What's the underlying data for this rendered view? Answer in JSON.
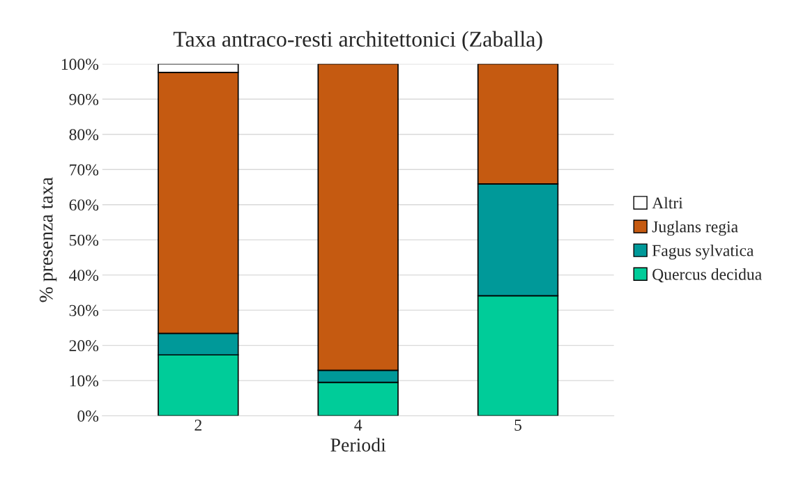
{
  "chart_data": {
    "type": "bar",
    "stacked": true,
    "title": "Taxa antraco-resti architettonici (Zaballa)",
    "xlabel": "Periodi",
    "ylabel": "% presenza taxa",
    "categories": [
      "2",
      "4",
      "5"
    ],
    "series": [
      {
        "name": "Quercus decidua",
        "color": "#00cc99",
        "values": [
          17.3,
          9.5,
          34.1
        ]
      },
      {
        "name": "Fagus sylvatica",
        "color": "#009999",
        "values": [
          6.1,
          3.4,
          31.8
        ]
      },
      {
        "name": "Juglans regia",
        "color": "#c55a11",
        "values": [
          74.2,
          87.1,
          34.1
        ]
      },
      {
        "name": "Altri",
        "color": "#ffffff",
        "values": [
          2.4,
          0,
          0
        ]
      }
    ],
    "ylim": [
      0,
      100
    ],
    "yticks": [
      {
        "value": 0,
        "label": "0%"
      },
      {
        "value": 10,
        "label": "10%"
      },
      {
        "value": 20,
        "label": "20%"
      },
      {
        "value": 30,
        "label": "30%"
      },
      {
        "value": 40,
        "label": "40%"
      },
      {
        "value": 50,
        "label": "50%"
      },
      {
        "value": 60,
        "label": "60%"
      },
      {
        "value": 70,
        "label": "70%"
      },
      {
        "value": 80,
        "label": "80%"
      },
      {
        "value": 90,
        "label": "90%"
      },
      {
        "value": 100,
        "label": "100%"
      }
    ],
    "grid": "y",
    "legend": "right"
  }
}
